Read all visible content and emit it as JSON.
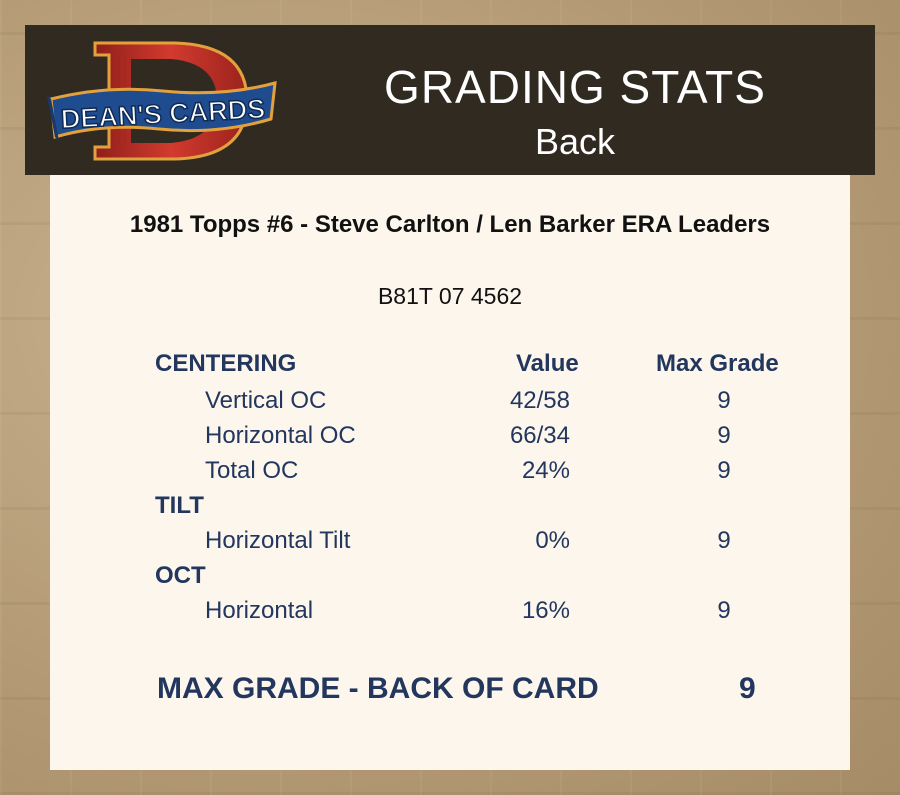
{
  "header": {
    "logo_text": "DEAN'S CARDS",
    "title": "GRADING STATS",
    "subtitle": "Back"
  },
  "card": {
    "title": "1981 Topps #6  -  Steve Carlton / Len Barker ERA Leaders",
    "cert_number": "B81T 07 4562"
  },
  "columns": {
    "value": "Value",
    "max_grade": "Max Grade"
  },
  "sections": [
    {
      "name": "CENTERING",
      "rows": [
        {
          "label": "Vertical OC",
          "value": "42/58",
          "max_grade": "9"
        },
        {
          "label": "Horizontal OC",
          "value": "66/34",
          "max_grade": "9"
        },
        {
          "label": "Total OC",
          "value": "24%",
          "max_grade": "9"
        }
      ]
    },
    {
      "name": "TILT",
      "rows": [
        {
          "label": "Horizontal Tilt",
          "value": "0%",
          "max_grade": "9"
        }
      ]
    },
    {
      "name": "OCT",
      "rows": [
        {
          "label": "Horizontal",
          "value": "16%",
          "max_grade": "9"
        }
      ]
    }
  ],
  "summary": {
    "label": "MAX GRADE - BACK OF CARD",
    "grade": "9"
  },
  "colors": {
    "header_bg": "#312a21",
    "panel_bg": "#fcf6ec",
    "text_navy": "#22365e",
    "logo_red": "#c4332b",
    "logo_blue": "#1f4c8f",
    "logo_gold": "#e2a13c"
  }
}
